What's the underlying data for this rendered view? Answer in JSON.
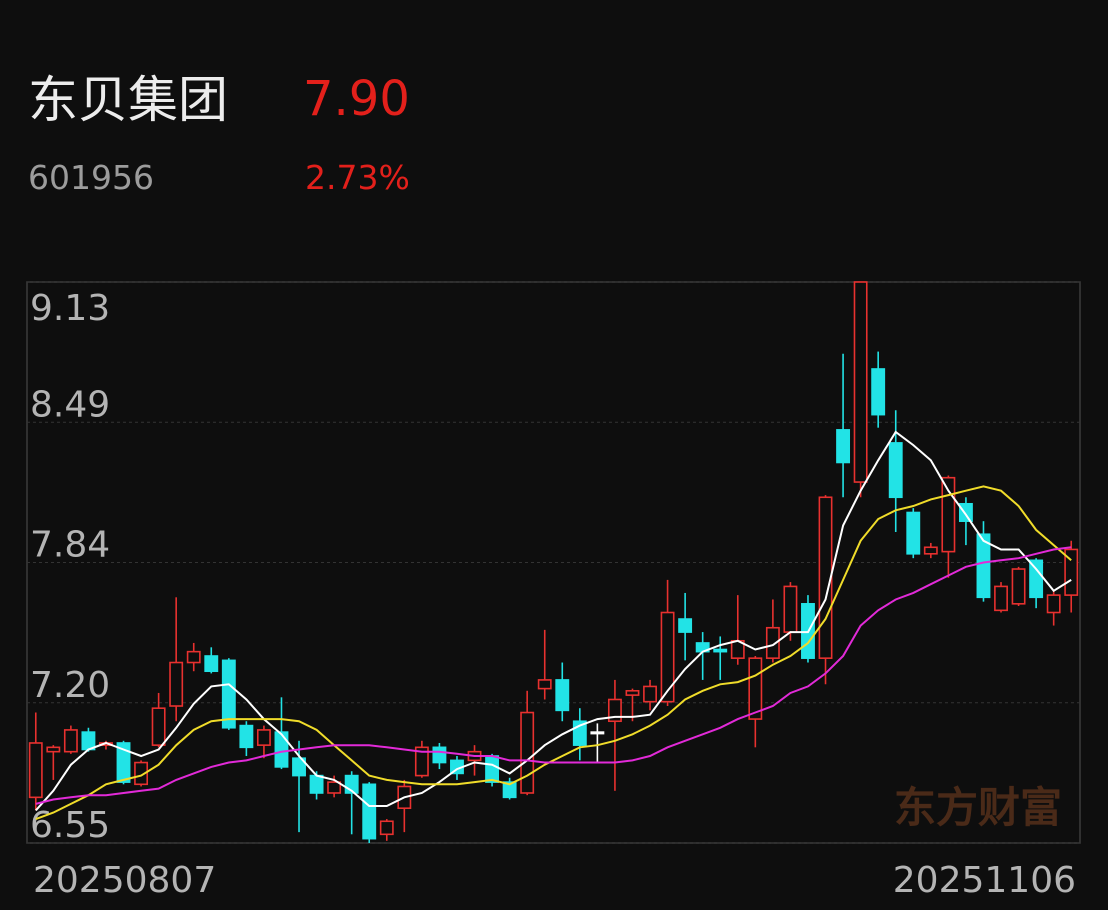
{
  "header": {
    "name": "东贝集团",
    "price": "7.90",
    "code": "601956",
    "change": "2.73%"
  },
  "chart_data": {
    "type": "candlestick",
    "watermark": "东方财富",
    "categories": [
      "20250807",
      null,
      null,
      null,
      null,
      null,
      null,
      null,
      null,
      null,
      null,
      null,
      null,
      null,
      null,
      null,
      null,
      null,
      null,
      null,
      null,
      null,
      null,
      null,
      null,
      null,
      null,
      null,
      null,
      null,
      null,
      null,
      null,
      null,
      null,
      null,
      null,
      null,
      null,
      null,
      null,
      null,
      null,
      null,
      null,
      null,
      null,
      null,
      null,
      null,
      null,
      null,
      null,
      null,
      null,
      null,
      null,
      null,
      null,
      "20251106"
    ],
    "open": [
      6.76,
      6.97,
      6.97,
      7.06,
      7.0,
      7.01,
      6.82,
      7.0,
      7.18,
      7.38,
      7.41,
      7.39,
      7.09,
      7.0,
      7.06,
      6.94,
      6.86,
      6.78,
      6.86,
      6.82,
      6.59,
      6.71,
      6.86,
      6.99,
      6.93,
      6.93,
      6.95,
      6.83,
      6.78,
      7.26,
      7.3,
      7.11,
      7.06,
      7.11,
      7.23,
      7.2,
      7.2,
      7.58,
      7.47,
      7.44,
      7.4,
      7.12,
      7.4,
      7.52,
      7.65,
      7.4,
      8.45,
      8.21,
      8.73,
      8.39,
      8.07,
      7.88,
      7.89,
      8.11,
      7.97,
      7.62,
      7.65,
      7.85,
      7.61,
      7.69
    ],
    "high": [
      7.15,
      7.0,
      7.09,
      7.08,
      7.02,
      7.02,
      6.93,
      7.24,
      7.68,
      7.47,
      7.45,
      7.4,
      7.11,
      7.09,
      7.22,
      7.02,
      6.88,
      6.86,
      6.88,
      6.83,
      6.66,
      6.84,
      7.02,
      7.01,
      6.95,
      7.0,
      6.96,
      6.85,
      7.25,
      7.53,
      7.38,
      7.17,
      7.1,
      7.3,
      7.26,
      7.3,
      7.76,
      7.7,
      7.52,
      7.5,
      7.69,
      7.41,
      7.67,
      7.75,
      7.69,
      8.15,
      8.8,
      9.13,
      8.81,
      8.54,
      8.09,
      7.93,
      8.24,
      8.14,
      8.03,
      7.75,
      7.82,
      7.86,
      7.71,
      7.94
    ],
    "low": [
      6.7,
      6.84,
      6.96,
      6.97,
      6.98,
      6.82,
      6.81,
      6.99,
      7.11,
      7.34,
      7.33,
      7.07,
      6.95,
      6.94,
      6.89,
      6.6,
      6.75,
      6.76,
      6.59,
      6.55,
      6.56,
      6.6,
      6.85,
      6.89,
      6.84,
      6.86,
      6.81,
      6.75,
      6.77,
      7.21,
      7.11,
      6.93,
      6.92,
      6.79,
      7.11,
      7.16,
      7.18,
      7.39,
      7.3,
      7.3,
      7.37,
      6.99,
      7.38,
      7.48,
      7.38,
      7.28,
      8.14,
      8.14,
      8.46,
      7.98,
      7.86,
      7.86,
      7.77,
      7.92,
      7.66,
      7.61,
      7.64,
      7.63,
      7.55,
      7.61
    ],
    "close": [
      7.01,
      6.99,
      7.07,
      6.98,
      7.01,
      6.83,
      6.92,
      7.17,
      7.38,
      7.43,
      7.34,
      7.08,
      6.99,
      7.07,
      6.9,
      6.86,
      6.78,
      6.83,
      6.78,
      6.57,
      6.65,
      6.81,
      6.99,
      6.92,
      6.87,
      6.97,
      6.83,
      6.76,
      7.15,
      7.3,
      7.16,
      7.0,
      7.06,
      7.21,
      7.25,
      7.27,
      7.61,
      7.52,
      7.43,
      7.43,
      7.48,
      7.4,
      7.54,
      7.73,
      7.4,
      8.14,
      8.3,
      9.13,
      8.52,
      8.14,
      7.88,
      7.91,
      8.23,
      8.03,
      7.68,
      7.73,
      7.81,
      7.68,
      7.69,
      7.9
    ],
    "up_color": "#e8312f",
    "down_color": "#22e3e6",
    "flat_color": "#ffffff",
    "series": [
      {
        "color": "#ffffff",
        "values": [
          6.7,
          6.79,
          6.91,
          6.98,
          7.01,
          6.98,
          6.95,
          6.98,
          7.08,
          7.19,
          7.27,
          7.28,
          7.21,
          7.12,
          7.05,
          6.95,
          6.86,
          6.84,
          6.79,
          6.72,
          6.72,
          6.76,
          6.78,
          6.83,
          6.89,
          6.92,
          6.91,
          6.87,
          6.93,
          7.0,
          7.05,
          7.09,
          7.12,
          7.13,
          7.13,
          7.14,
          7.25,
          7.35,
          7.43,
          7.46,
          7.48,
          7.44,
          7.46,
          7.52,
          7.52,
          7.67,
          8.01,
          8.17,
          8.31,
          8.44,
          8.38,
          8.31,
          8.17,
          8.06,
          7.94,
          7.9,
          7.9,
          7.81,
          7.71,
          7.76
        ]
      },
      {
        "color": "#f0dc2a",
        "values": [
          6.66,
          6.69,
          6.73,
          6.77,
          6.82,
          6.84,
          6.86,
          6.91,
          7.0,
          7.07,
          7.11,
          7.12,
          7.12,
          7.12,
          7.12,
          7.11,
          7.07,
          7.0,
          6.93,
          6.86,
          6.84,
          6.83,
          6.82,
          6.82,
          6.82,
          6.83,
          6.84,
          6.82,
          6.86,
          6.91,
          6.95,
          6.99,
          7.0,
          7.02,
          7.05,
          7.09,
          7.14,
          7.21,
          7.25,
          7.28,
          7.29,
          7.32,
          7.37,
          7.41,
          7.47,
          7.58,
          7.76,
          7.94,
          8.04,
          8.08,
          8.1,
          8.13,
          8.15,
          8.17,
          8.19,
          8.17,
          8.1,
          7.99,
          7.92,
          7.85
        ]
      },
      {
        "color": "#e22ad8",
        "values": [
          6.73,
          6.75,
          6.76,
          6.77,
          6.77,
          6.78,
          6.79,
          6.8,
          6.84,
          6.87,
          6.9,
          6.92,
          6.93,
          6.95,
          6.97,
          6.98,
          6.99,
          7.0,
          7.0,
          7.0,
          6.99,
          6.98,
          6.97,
          6.97,
          6.96,
          6.95,
          6.95,
          6.93,
          6.93,
          6.92,
          6.92,
          6.92,
          6.92,
          6.92,
          6.93,
          6.95,
          6.99,
          7.02,
          7.05,
          7.08,
          7.12,
          7.15,
          7.18,
          7.24,
          7.27,
          7.33,
          7.41,
          7.55,
          7.62,
          7.67,
          7.7,
          7.74,
          7.78,
          7.82,
          7.84,
          7.85,
          7.86,
          7.88,
          7.9,
          7.91
        ]
      }
    ],
    "ylim": [
      6.55,
      9.13
    ],
    "yticks": [
      9.13,
      {
        "value": 8.485,
        "label": "8.49"
      },
      7.84,
      {
        "value": 7.195,
        "label": "7.20"
      },
      6.55
    ],
    "grid": true
  }
}
